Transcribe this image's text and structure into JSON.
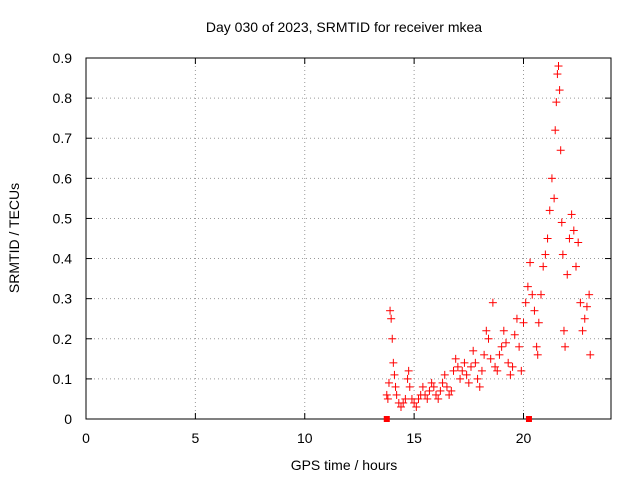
{
  "chart_data": {
    "type": "scatter",
    "title": "Day 030 of 2023, SRMTID for receiver mkea",
    "xlabel": "GPS time / hours",
    "ylabel": "SRMTID / TECUs",
    "xlim": [
      0,
      24
    ],
    "ylim": [
      0,
      0.9
    ],
    "xticks": [
      "0",
      "5",
      "10",
      "15",
      "20"
    ],
    "xtick_values": [
      0,
      5,
      10,
      15,
      20
    ],
    "yticks": [
      "0",
      "0.1",
      "0.2",
      "0.3",
      "0.4",
      "0.5",
      "0.6",
      "0.7",
      "0.8",
      "0.9"
    ],
    "ytick_values": [
      0,
      0.1,
      0.2,
      0.3,
      0.4,
      0.5,
      0.6,
      0.7,
      0.8,
      0.9
    ],
    "grid": true,
    "marker": "+",
    "color": "#ff0000",
    "series": [
      {
        "name": "SRMTID",
        "points": [
          [
            13.75,
            0.06
          ],
          [
            13.8,
            0.05
          ],
          [
            13.85,
            0.09
          ],
          [
            13.9,
            0.27
          ],
          [
            13.95,
            0.25
          ],
          [
            14.0,
            0.2
          ],
          [
            14.05,
            0.14
          ],
          [
            14.1,
            0.11
          ],
          [
            14.15,
            0.08
          ],
          [
            14.2,
            0.06
          ],
          [
            14.3,
            0.04
          ],
          [
            14.4,
            0.03
          ],
          [
            14.5,
            0.04
          ],
          [
            14.6,
            0.05
          ],
          [
            14.7,
            0.1
          ],
          [
            14.75,
            0.12
          ],
          [
            14.8,
            0.08
          ],
          [
            14.9,
            0.05
          ],
          [
            15.0,
            0.04
          ],
          [
            15.1,
            0.03
          ],
          [
            15.2,
            0.05
          ],
          [
            15.3,
            0.06
          ],
          [
            15.4,
            0.08
          ],
          [
            15.5,
            0.06
          ],
          [
            15.6,
            0.05
          ],
          [
            15.7,
            0.07
          ],
          [
            15.8,
            0.09
          ],
          [
            15.9,
            0.08
          ],
          [
            16.0,
            0.06
          ],
          [
            16.1,
            0.05
          ],
          [
            16.2,
            0.07
          ],
          [
            16.3,
            0.09
          ],
          [
            16.4,
            0.11
          ],
          [
            16.5,
            0.08
          ],
          [
            16.6,
            0.06
          ],
          [
            16.7,
            0.07
          ],
          [
            16.8,
            0.12
          ],
          [
            16.9,
            0.15
          ],
          [
            17.0,
            0.13
          ],
          [
            17.1,
            0.1
          ],
          [
            17.2,
            0.12
          ],
          [
            17.3,
            0.14
          ],
          [
            17.4,
            0.11
          ],
          [
            17.5,
            0.09
          ],
          [
            17.6,
            0.13
          ],
          [
            17.7,
            0.17
          ],
          [
            17.8,
            0.14
          ],
          [
            17.9,
            0.1
          ],
          [
            18.0,
            0.08
          ],
          [
            18.1,
            0.12
          ],
          [
            18.2,
            0.16
          ],
          [
            18.3,
            0.22
          ],
          [
            18.4,
            0.2
          ],
          [
            18.5,
            0.15
          ],
          [
            18.6,
            0.29
          ],
          [
            18.7,
            0.13
          ],
          [
            18.8,
            0.12
          ],
          [
            18.9,
            0.16
          ],
          [
            19.0,
            0.18
          ],
          [
            19.1,
            0.22
          ],
          [
            19.2,
            0.19
          ],
          [
            19.3,
            0.14
          ],
          [
            19.4,
            0.11
          ],
          [
            19.5,
            0.13
          ],
          [
            19.6,
            0.21
          ],
          [
            19.7,
            0.25
          ],
          [
            19.8,
            0.18
          ],
          [
            19.9,
            0.12
          ],
          [
            20.0,
            0.24
          ],
          [
            20.1,
            0.29
          ],
          [
            20.2,
            0.33
          ],
          [
            20.3,
            0.39
          ],
          [
            20.4,
            0.31
          ],
          [
            20.5,
            0.27
          ],
          [
            20.6,
            0.18
          ],
          [
            20.65,
            0.16
          ],
          [
            20.7,
            0.24
          ],
          [
            20.8,
            0.31
          ],
          [
            20.9,
            0.38
          ],
          [
            21.0,
            0.41
          ],
          [
            21.1,
            0.45
          ],
          [
            21.2,
            0.52
          ],
          [
            21.3,
            0.6
          ],
          [
            21.4,
            0.55
          ],
          [
            21.45,
            0.72
          ],
          [
            21.5,
            0.79
          ],
          [
            21.55,
            0.86
          ],
          [
            21.6,
            0.88
          ],
          [
            21.65,
            0.82
          ],
          [
            21.7,
            0.67
          ],
          [
            21.75,
            0.49
          ],
          [
            21.8,
            0.41
          ],
          [
            21.85,
            0.22
          ],
          [
            21.9,
            0.18
          ],
          [
            22.0,
            0.36
          ],
          [
            22.1,
            0.45
          ],
          [
            22.2,
            0.51
          ],
          [
            22.3,
            0.47
          ],
          [
            22.4,
            0.38
          ],
          [
            22.5,
            0.44
          ],
          [
            22.6,
            0.29
          ],
          [
            22.7,
            0.22
          ],
          [
            22.8,
            0.25
          ],
          [
            22.9,
            0.28
          ],
          [
            23.0,
            0.31
          ],
          [
            23.05,
            0.16
          ]
        ]
      },
      {
        "name": "data-gap-markers",
        "points": [
          [
            13.75,
            0.0
          ],
          [
            20.25,
            0.0
          ]
        ]
      }
    ]
  }
}
